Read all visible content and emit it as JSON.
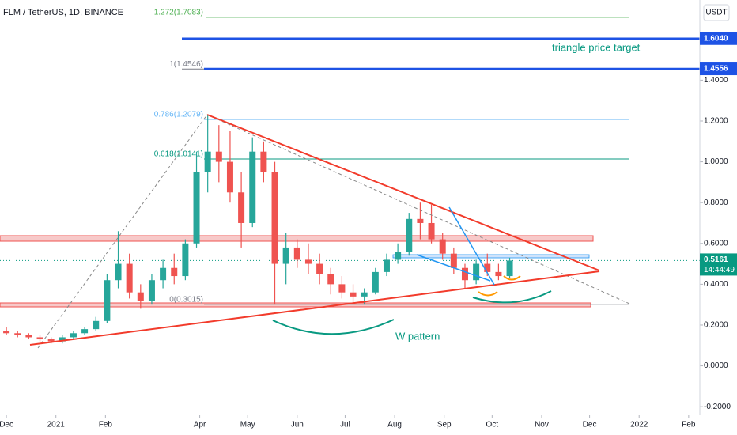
{
  "chart_data": {
    "type": "candlestick",
    "title": "FLM / TetherUS, 1D, BINANCE",
    "currency": "USDT",
    "up_color": "#26a69a",
    "down_color": "#ef5350",
    "xlim": [
      -4,
      434
    ],
    "ylim": [
      -0.242,
      1.793
    ],
    "xticks": [
      {
        "value": 0,
        "label": "Dec"
      },
      {
        "value": 31,
        "label": "2021"
      },
      {
        "value": 62,
        "label": "Feb"
      },
      {
        "value": 121,
        "label": "Apr"
      },
      {
        "value": 151,
        "label": "May"
      },
      {
        "value": 182,
        "label": "Jun"
      },
      {
        "value": 212,
        "label": "Jul"
      },
      {
        "value": 243,
        "label": "Aug"
      },
      {
        "value": 274,
        "label": "Sep"
      },
      {
        "value": 304,
        "label": "Oct"
      },
      {
        "value": 335,
        "label": "Nov"
      },
      {
        "value": 365,
        "label": "Dec"
      },
      {
        "value": 396,
        "label": "2022"
      },
      {
        "value": 427,
        "label": "Feb"
      }
    ],
    "yticks": [
      {
        "value": 1.4,
        "label": "1.4000"
      },
      {
        "value": 1.2,
        "label": "1.2000"
      },
      {
        "value": 1.0,
        "label": "1.0000"
      },
      {
        "value": 0.8,
        "label": "0.8000"
      },
      {
        "value": 0.6,
        "label": "0.6000"
      },
      {
        "value": 0.4,
        "label": "0.4000"
      },
      {
        "value": 0.2,
        "label": "0.2000"
      },
      {
        "value": 0,
        "label": "0.0000"
      },
      {
        "value": -0.2,
        "label": "-0.2000"
      }
    ],
    "x": [
      0,
      7,
      14,
      21,
      28,
      35,
      42,
      49,
      56,
      63,
      70,
      77,
      84,
      91,
      98,
      105,
      112,
      119,
      126,
      133,
      140,
      147,
      154,
      161,
      168,
      175,
      182,
      189,
      196,
      203,
      210,
      217,
      224,
      231,
      238,
      245,
      252,
      259,
      266,
      273,
      280,
      287,
      294,
      301,
      308,
      315
    ],
    "open": [
      0.17,
      0.16,
      0.15,
      0.14,
      0.13,
      0.12,
      0.14,
      0.16,
      0.18,
      0.22,
      0.42,
      0.5,
      0.36,
      0.32,
      0.42,
      0.48,
      0.44,
      0.6,
      0.95,
      1.05,
      1.0,
      0.85,
      0.7,
      1.05,
      0.95,
      0.5,
      0.58,
      0.52,
      0.5,
      0.45,
      0.4,
      0.36,
      0.34,
      0.36,
      0.46,
      0.52,
      0.56,
      0.72,
      0.7,
      0.62,
      0.55,
      0.48,
      0.42,
      0.5,
      0.46,
      0.44
    ],
    "high": [
      0.19,
      0.17,
      0.16,
      0.15,
      0.14,
      0.15,
      0.17,
      0.19,
      0.24,
      0.45,
      0.66,
      0.55,
      0.4,
      0.45,
      0.52,
      0.55,
      0.62,
      1.05,
      1.23,
      1.18,
      1.15,
      0.95,
      1.12,
      1.1,
      1.0,
      0.65,
      0.62,
      0.6,
      0.55,
      0.48,
      0.44,
      0.4,
      0.38,
      0.48,
      0.55,
      0.6,
      0.75,
      0.8,
      0.79,
      0.65,
      0.58,
      0.5,
      0.52,
      0.55,
      0.5,
      0.53
    ],
    "low": [
      0.15,
      0.14,
      0.13,
      0.12,
      0.11,
      0.11,
      0.13,
      0.15,
      0.17,
      0.21,
      0.38,
      0.33,
      0.28,
      0.3,
      0.38,
      0.4,
      0.42,
      0.58,
      0.85,
      0.9,
      0.8,
      0.58,
      0.68,
      0.9,
      0.3,
      0.4,
      0.48,
      0.45,
      0.4,
      0.35,
      0.33,
      0.31,
      0.3,
      0.35,
      0.44,
      0.5,
      0.54,
      0.62,
      0.6,
      0.52,
      0.45,
      0.38,
      0.4,
      0.44,
      0.42,
      0.43
    ],
    "close": [
      0.16,
      0.15,
      0.14,
      0.13,
      0.12,
      0.14,
      0.16,
      0.18,
      0.22,
      0.42,
      0.5,
      0.36,
      0.32,
      0.42,
      0.48,
      0.44,
      0.6,
      0.95,
      1.05,
      1.0,
      0.85,
      0.7,
      1.05,
      0.95,
      0.5,
      0.58,
      0.52,
      0.5,
      0.45,
      0.4,
      0.36,
      0.34,
      0.36,
      0.46,
      0.52,
      0.56,
      0.72,
      0.7,
      0.62,
      0.55,
      0.48,
      0.42,
      0.5,
      0.46,
      0.44,
      0.5161
    ],
    "fib_levels": [
      {
        "value": 1.7083,
        "label": "1.272(1.7083)",
        "color": "#4caf50"
      },
      {
        "value": 1.4546,
        "label": "1(1.4546)",
        "color": "#787b86"
      },
      {
        "value": 1.2079,
        "label": "0.786(1.2079)",
        "color": "#64b5f6"
      },
      {
        "value": 1.0141,
        "label": "0.618(1.0141)",
        "color": "#089981"
      },
      {
        "value": 0.3015,
        "label": "0(0.3015)",
        "color": "#787b86"
      }
    ],
    "price_lines": [
      {
        "value": 1.604,
        "label": "1.6040",
        "color": "#1e53e5"
      },
      {
        "value": 1.4556,
        "label": "1.4556",
        "color": "#1e53e5"
      }
    ],
    "last_price": {
      "value": 0.5161,
      "label": "0.5161",
      "countdown": "14:44:49",
      "color": "#089981"
    },
    "annotations": [
      "triangle price target",
      "W pattern"
    ]
  }
}
